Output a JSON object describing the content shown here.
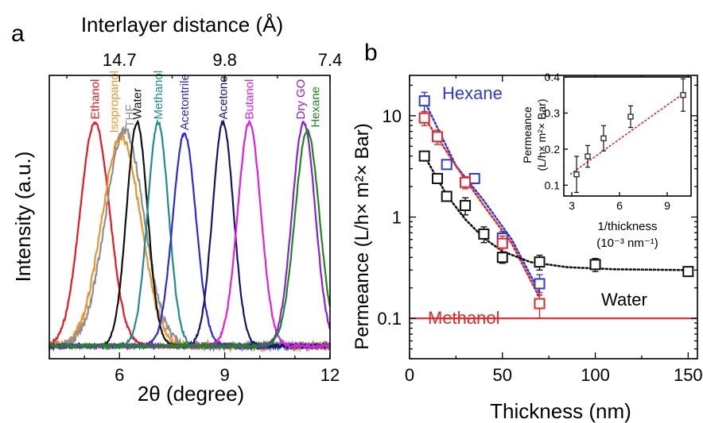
{
  "chart_data": [
    {
      "panel": "a",
      "type": "line",
      "xlabel": "2θ (degree)",
      "ylabel": "Intensity (a.u.)",
      "x2label": "Interlayer distance (Å)",
      "xlim": [
        4,
        12
      ],
      "xticks": [
        6,
        9,
        12
      ],
      "x2ticks": [
        "14.7",
        "9.8",
        "7.4"
      ],
      "x2tick_positions": [
        6,
        9,
        12
      ],
      "series": [
        {
          "name": "Ethanol",
          "color": "#e8171f",
          "peak": 5.3,
          "width": 0.42,
          "height": 0.83
        },
        {
          "name": "Isopropanol",
          "color": "#f0922a",
          "peak": 6.05,
          "width": 0.55,
          "height": 0.78
        },
        {
          "name": "THF",
          "color": "#8f8f8f",
          "peak": 6.15,
          "width": 0.55,
          "height": 0.8
        },
        {
          "name": "Water",
          "color": "#111111",
          "peak": 6.5,
          "width": 0.3,
          "height": 0.83
        },
        {
          "name": "Methanol",
          "color": "#1f8c8c",
          "peak": 7.1,
          "width": 0.3,
          "height": 0.83
        },
        {
          "name": "Acetontrile",
          "color": "#2a2ad8",
          "peak": 7.85,
          "width": 0.33,
          "height": 0.79
        },
        {
          "name": "Acetone",
          "color": "#14146e",
          "peak": 8.95,
          "width": 0.3,
          "height": 0.83
        },
        {
          "name": "Butanol",
          "color": "#e21ee2",
          "peak": 9.7,
          "width": 0.33,
          "height": 0.83
        },
        {
          "name": "Dry GO",
          "color": "#8a1fdc",
          "peak": 11.25,
          "width": 0.33,
          "height": 0.83
        },
        {
          "name": "Hexane",
          "color": "#1a8a1a",
          "peak": 11.35,
          "width": 0.35,
          "height": 0.8
        }
      ]
    },
    {
      "panel": "b",
      "type": "scatter",
      "xlabel": "Thickness (nm)",
      "ylabel": "Permeance (L/h× m²× Bar)",
      "xlim": [
        0,
        155
      ],
      "ylim": [
        0.04,
        25
      ],
      "yscale": "log",
      "xticks": [
        0,
        50,
        100,
        150
      ],
      "yticks": [
        0.1,
        1,
        10
      ],
      "ytick_labels": [
        "0.1",
        "1",
        "10"
      ],
      "series": [
        {
          "name": "Hexane",
          "color": "#2a3bd9",
          "x": [
            8,
            20,
            35,
            50,
            70
          ],
          "y": [
            14,
            3.3,
            2.4,
            0.62,
            0.22
          ],
          "err": [
            3,
            0.3,
            0.25,
            0.1,
            0.05
          ],
          "fit": [
            [
              8,
              14
            ],
            [
              25,
              3.2
            ],
            [
              40,
              1.45
            ],
            [
              55,
              0.6
            ],
            [
              70,
              0.18
            ]
          ]
        },
        {
          "name": "",
          "color": "#e02828",
          "x": [
            8,
            15,
            30,
            50,
            70
          ],
          "y": [
            9.5,
            6.2,
            2.2,
            0.55,
            0.14
          ],
          "err": [
            1.5,
            1,
            0.3,
            0.1,
            0.04
          ],
          "fit": [
            [
              8,
              9.6
            ],
            [
              25,
              3.2
            ],
            [
              40,
              1.3
            ],
            [
              55,
              0.55
            ],
            [
              70,
              0.16
            ]
          ]
        },
        {
          "name": "Water",
          "color": "#111111",
          "x": [
            8,
            15,
            20,
            30,
            40,
            50,
            70,
            100,
            150
          ],
          "y": [
            4,
            2.4,
            1.6,
            1.3,
            0.68,
            0.4,
            0.36,
            0.34,
            0.29
          ],
          "err": [
            0.4,
            0.2,
            0.15,
            0.25,
            0.12,
            0.05,
            0.06,
            0.05,
            0.03
          ],
          "fit": [
            [
              8,
              4
            ],
            [
              20,
              1.65
            ],
            [
              30,
              0.95
            ],
            [
              40,
              0.62
            ],
            [
              50,
              0.46
            ],
            [
              65,
              0.36
            ],
            [
              85,
              0.32
            ],
            [
              110,
              0.305
            ],
            [
              150,
              0.3
            ]
          ]
        }
      ],
      "hline": {
        "name": "Methanol",
        "y": 0.1,
        "color": "#e02828"
      },
      "inset": {
        "type": "scatter",
        "xlabel": "1/thickness",
        "xlabel2": "(10⁻³ nm⁻¹)",
        "ylabel": "Permeance",
        "ylabel2": "(L/h× m²× Bar)",
        "xlim": [
          2.5,
          10.5
        ],
        "ylim": [
          0.07,
          0.4
        ],
        "xticks": [
          3,
          6,
          9
        ],
        "yticks": [
          0.1,
          0.2,
          0.3,
          0.4
        ],
        "ytick_labels": [
          "0.1",
          "0.2",
          "0.3",
          "0.4"
        ],
        "x": [
          3.3,
          4,
          5,
          6.7,
          10
        ],
        "y": [
          0.13,
          0.18,
          0.23,
          0.29,
          0.35
        ],
        "err": [
          0.05,
          0.03,
          0.035,
          0.03,
          0.045
        ],
        "fit": [
          [
            2.9,
            0.13
          ],
          [
            10.2,
            0.36
          ]
        ],
        "fit_color": "#e02828"
      }
    }
  ],
  "panels": {
    "a_label": "a",
    "b_label": "b"
  }
}
